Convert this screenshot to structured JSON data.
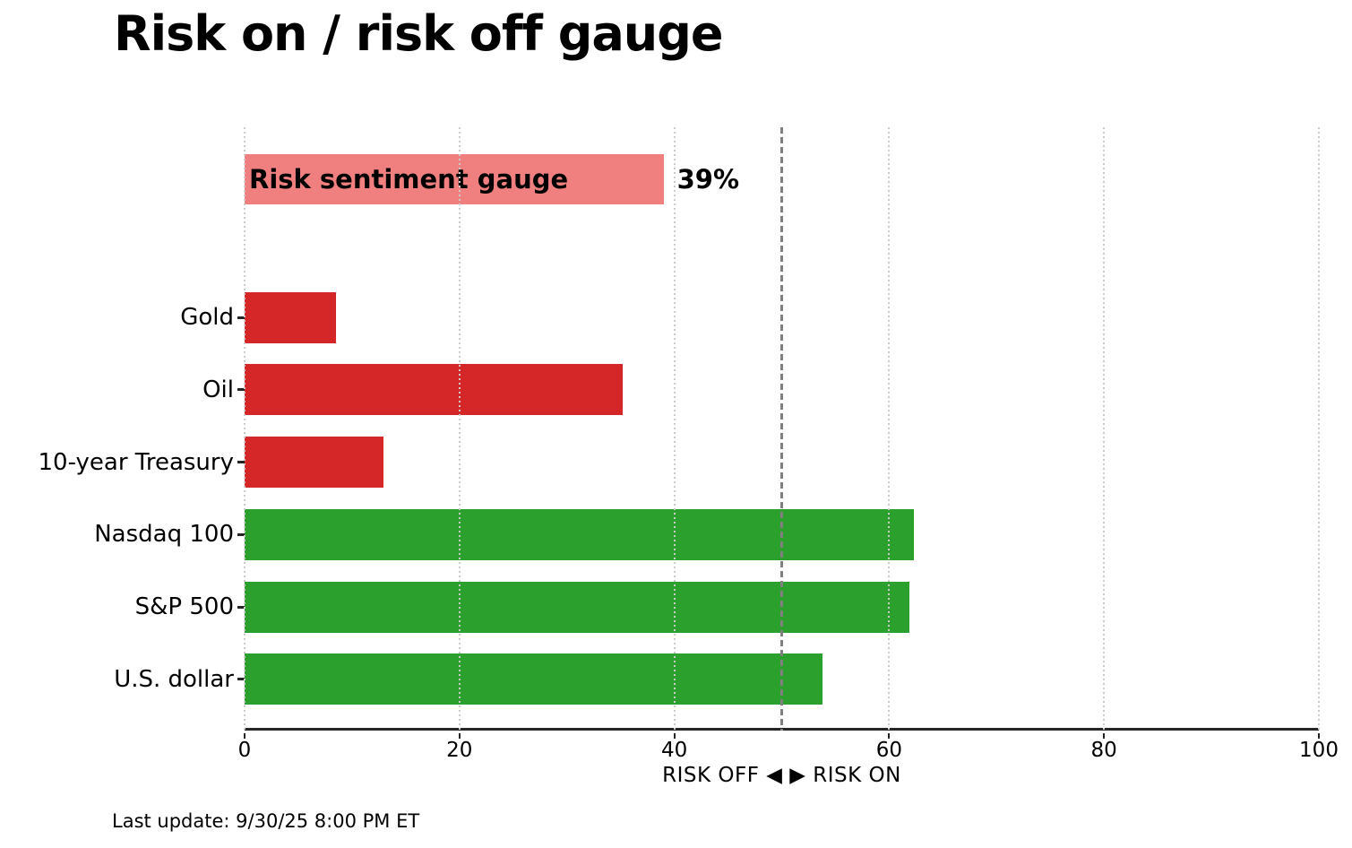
{
  "title": "Risk on / risk off gauge",
  "footer": {
    "last_update": "Last update: 9/30/25 8:00 PM ET"
  },
  "chart_data": {
    "type": "bar",
    "orientation": "horizontal",
    "title": "Risk on / risk off gauge",
    "gauge_bar": {
      "label": "Risk sentiment gauge",
      "value": 39,
      "value_label": "39%",
      "color": "#f08080"
    },
    "categories": [
      "Gold",
      "Oil",
      "10-year Treasury",
      "Nasdaq 100",
      "S&P 500",
      "U.S. dollar"
    ],
    "values": [
      8.5,
      35.2,
      12.9,
      62.3,
      61.9,
      53.8
    ],
    "rows": [
      {
        "label": "Gold",
        "value": 8.5,
        "color": "#d62728",
        "sentiment": "risk-off"
      },
      {
        "label": "Oil",
        "value": 35.2,
        "color": "#d62728",
        "sentiment": "risk-off"
      },
      {
        "label": "10-year Treasury",
        "value": 12.9,
        "color": "#d62728",
        "sentiment": "risk-off"
      },
      {
        "label": "Nasdaq 100",
        "value": 62.3,
        "color": "#2ca02c",
        "sentiment": "risk-on"
      },
      {
        "label": "S&P 500",
        "value": 61.9,
        "color": "#2ca02c",
        "sentiment": "risk-on"
      },
      {
        "label": "U.S. dollar",
        "value": 53.8,
        "color": "#2ca02c",
        "sentiment": "risk-on"
      }
    ],
    "xlim": [
      0,
      100
    ],
    "xticks": [
      {
        "value": 0,
        "label": "0"
      },
      {
        "value": 20,
        "label": "20"
      },
      {
        "value": 40,
        "label": "40"
      },
      {
        "value": 60,
        "label": "60"
      },
      {
        "value": 80,
        "label": "80"
      },
      {
        "value": 100,
        "label": "100"
      }
    ],
    "xlabel": "RISK OFF ◀ ▶ RISK ON",
    "reference_line": {
      "value": 50,
      "style": "dashed",
      "color": "#808080"
    },
    "grid": {
      "style": "dotted-vertical",
      "color": "#cbcbcb"
    },
    "colors": {
      "risk_off": "#d62728",
      "risk_on": "#2ca02c",
      "gauge": "#f08080",
      "axis": "#262626"
    },
    "legend": null
  }
}
